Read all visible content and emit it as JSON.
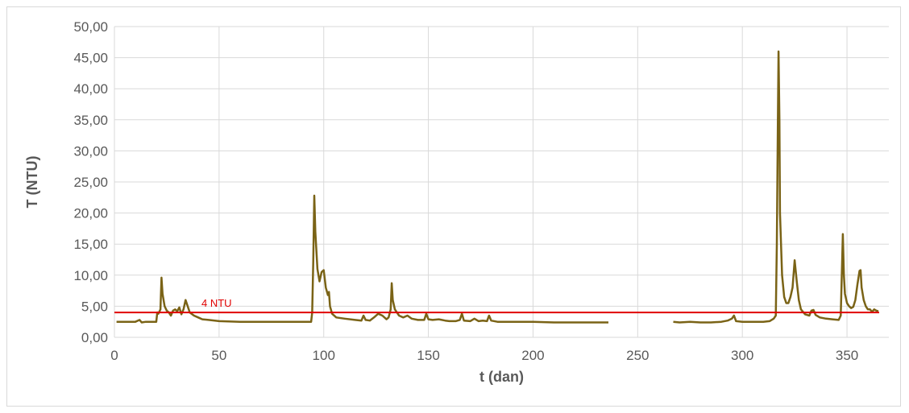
{
  "chart_data": {
    "type": "line",
    "title": "",
    "xlabel": "t (dan)",
    "ylabel": "T (NTU)",
    "xlim": [
      0,
      370
    ],
    "ylim": [
      0,
      50
    ],
    "x_ticks": [
      0,
      50,
      100,
      150,
      200,
      250,
      300,
      350
    ],
    "x_tick_labels": [
      "0",
      "50",
      "100",
      "150",
      "200",
      "250",
      "300",
      "350"
    ],
    "y_ticks": [
      0,
      5,
      10,
      15,
      20,
      25,
      30,
      35,
      40,
      45,
      50
    ],
    "y_tick_labels": [
      "0,00",
      "5,00",
      "10,00",
      "15,00",
      "20,00",
      "25,00",
      "30,00",
      "35,00",
      "40,00",
      "45,00",
      "50,00"
    ],
    "grid": true,
    "colors": {
      "series": "#7a6316",
      "reference": "#e00000",
      "grid": "#d9d9d9"
    },
    "reference_line": {
      "y": 4.0,
      "label": "4 NTU"
    },
    "series": [
      {
        "segments": [
          [
            [
              1,
              2.5
            ],
            [
              5,
              2.5
            ],
            [
              10,
              2.5
            ],
            [
              12,
              2.8
            ],
            [
              13,
              2.4
            ],
            [
              15,
              2.5
            ],
            [
              18,
              2.5
            ],
            [
              20,
              2.5
            ],
            [
              20.5,
              4.0
            ],
            [
              21,
              3.8
            ],
            [
              22,
              4.5
            ],
            [
              22.5,
              9.6
            ],
            [
              23,
              7.0
            ],
            [
              24,
              5.0
            ],
            [
              25,
              4.3
            ],
            [
              26,
              4.0
            ],
            [
              27,
              3.5
            ],
            [
              28,
              4.3
            ],
            [
              29,
              4.5
            ],
            [
              30,
              4.2
            ],
            [
              31,
              4.8
            ],
            [
              32,
              3.7
            ],
            [
              33,
              4.5
            ],
            [
              34,
              6.0
            ],
            [
              35,
              5.0
            ],
            [
              36,
              4.0
            ],
            [
              38,
              3.5
            ],
            [
              40,
              3.2
            ],
            [
              42,
              2.9
            ],
            [
              45,
              2.8
            ],
            [
              50,
              2.6
            ],
            [
              60,
              2.5
            ],
            [
              70,
              2.5
            ],
            [
              80,
              2.5
            ],
            [
              90,
              2.5
            ],
            [
              94,
              2.5
            ],
            [
              94.5,
              4.0
            ],
            [
              95,
              12.0
            ],
            [
              95.5,
              22.8
            ],
            [
              96,
              17.0
            ],
            [
              97,
              11.0
            ],
            [
              98,
              9.0
            ],
            [
              99,
              10.5
            ],
            [
              100,
              10.8
            ],
            [
              101,
              8.0
            ],
            [
              102,
              6.8
            ],
            [
              102.5,
              7.3
            ],
            [
              103,
              5.0
            ],
            [
              104,
              3.8
            ],
            [
              106,
              3.2
            ],
            [
              110,
              3.0
            ],
            [
              115,
              2.8
            ],
            [
              118,
              2.7
            ],
            [
              119,
              3.5
            ],
            [
              120,
              2.8
            ],
            [
              122,
              2.7
            ],
            [
              124,
              3.2
            ],
            [
              126,
              3.8
            ],
            [
              128,
              3.5
            ],
            [
              130,
              2.9
            ],
            [
              131,
              3.2
            ],
            [
              132,
              4.5
            ],
            [
              132.5,
              8.7
            ],
            [
              133,
              6.0
            ],
            [
              134,
              4.5
            ],
            [
              136,
              3.5
            ],
            [
              138,
              3.2
            ],
            [
              140,
              3.5
            ],
            [
              142,
              3.0
            ],
            [
              145,
              2.8
            ],
            [
              148,
              2.8
            ],
            [
              149,
              3.8
            ],
            [
              150,
              2.9
            ],
            [
              152,
              2.8
            ],
            [
              155,
              2.9
            ],
            [
              158,
              2.7
            ],
            [
              160,
              2.6
            ],
            [
              163,
              2.6
            ],
            [
              165,
              2.8
            ],
            [
              166,
              3.8
            ],
            [
              167,
              2.7
            ],
            [
              170,
              2.6
            ],
            [
              172,
              3.0
            ],
            [
              174,
              2.6
            ],
            [
              176,
              2.7
            ],
            [
              178,
              2.6
            ],
            [
              179,
              3.5
            ],
            [
              180,
              2.7
            ],
            [
              183,
              2.5
            ],
            [
              190,
              2.5
            ],
            [
              200,
              2.5
            ],
            [
              210,
              2.4
            ],
            [
              220,
              2.4
            ],
            [
              230,
              2.4
            ],
            [
              236,
              2.4
            ]
          ],
          [
            [
              267,
              2.5
            ],
            [
              270,
              2.4
            ],
            [
              275,
              2.5
            ],
            [
              280,
              2.4
            ],
            [
              285,
              2.4
            ],
            [
              290,
              2.5
            ],
            [
              293,
              2.7
            ],
            [
              295,
              3.0
            ],
            [
              296,
              3.5
            ],
            [
              297,
              2.6
            ],
            [
              300,
              2.5
            ],
            [
              305,
              2.5
            ],
            [
              310,
              2.5
            ],
            [
              313,
              2.6
            ],
            [
              315,
              3.0
            ],
            [
              316,
              3.5
            ],
            [
              316.5,
              15.0
            ],
            [
              317,
              35.0
            ],
            [
              317.3,
              46.0
            ],
            [
              317.7,
              35.0
            ],
            [
              318,
              20.0
            ],
            [
              319,
              10.0
            ],
            [
              320,
              6.5
            ],
            [
              321,
              5.5
            ],
            [
              322,
              5.5
            ],
            [
              323,
              6.5
            ],
            [
              324,
              8.0
            ],
            [
              325,
              12.4
            ],
            [
              326,
              9.0
            ],
            [
              327,
              6.0
            ],
            [
              328,
              4.5
            ],
            [
              330,
              3.7
            ],
            [
              332,
              3.5
            ],
            [
              333,
              4.3
            ],
            [
              334,
              4.4
            ],
            [
              335,
              3.6
            ],
            [
              337,
              3.2
            ],
            [
              340,
              3.0
            ],
            [
              343,
              2.9
            ],
            [
              346,
              2.8
            ],
            [
              347,
              3.5
            ],
            [
              347.5,
              10.0
            ],
            [
              348,
              16.6
            ],
            [
              348.5,
              10.0
            ],
            [
              349,
              7.0
            ],
            [
              350,
              5.5
            ],
            [
              351,
              5.0
            ],
            [
              352,
              4.7
            ],
            [
              353,
              4.9
            ],
            [
              354,
              6.0
            ],
            [
              355,
              8.5
            ],
            [
              356,
              10.7
            ],
            [
              356.5,
              10.8
            ],
            [
              357,
              8.0
            ],
            [
              358,
              6.0
            ],
            [
              359,
              5.0
            ],
            [
              360,
              4.5
            ],
            [
              361,
              4.5
            ],
            [
              362,
              4.1
            ],
            [
              363,
              4.5
            ],
            [
              364,
              4.3
            ],
            [
              365,
              4.2
            ]
          ]
        ]
      }
    ]
  }
}
